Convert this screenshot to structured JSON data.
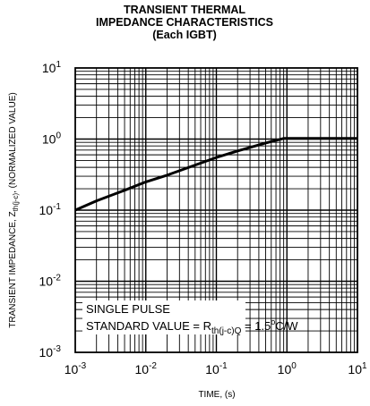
{
  "chart_data": {
    "type": "line",
    "title": [
      "TRANSIENT THERMAL",
      "IMPEDANCE CHARACTERISTICS",
      "(Each IGBT)"
    ],
    "xlabel": "TIME, (s)",
    "ylabel": {
      "pre": "TRANSIENT  IMPEDANCE, Z",
      "sub": "th(j-c)",
      "post": ", (NORMALIZED VALUE)"
    },
    "xscale": "log",
    "yscale": "log",
    "xlim": [
      0.001,
      10
    ],
    "ylim": [
      0.001,
      10
    ],
    "grid": true,
    "x_tick_labels": [
      {
        "base": "10",
        "exp": "-3"
      },
      {
        "base": "10",
        "exp": "-2"
      },
      {
        "base": "10",
        "exp": "-1"
      },
      {
        "base": "10",
        "exp": "0"
      },
      {
        "base": "10",
        "exp": "1"
      }
    ],
    "y_tick_labels": [
      {
        "base": "10",
        "exp": "-3"
      },
      {
        "base": "10",
        "exp": "-2"
      },
      {
        "base": "10",
        "exp": "-1"
      },
      {
        "base": "10",
        "exp": "0"
      },
      {
        "base": "10",
        "exp": "1"
      }
    ],
    "series": [
      {
        "x": [
          0.001,
          0.002,
          0.005,
          0.01,
          0.02,
          0.05,
          0.1,
          0.2,
          0.5,
          0.9,
          2,
          5,
          10
        ],
        "y": [
          0.1,
          0.135,
          0.19,
          0.25,
          0.31,
          0.43,
          0.55,
          0.68,
          0.88,
          1.02,
          1.02,
          1.02,
          1.02
        ]
      }
    ],
    "annotations": {
      "line1": "SINGLE PULSE",
      "line2_pre": "STANDARD VALUE = R",
      "line2_sub": "th(j-c)Q",
      "line2_mid": " = 1.5",
      "line2_sup": "o",
      "line2_post": "C/W"
    }
  }
}
